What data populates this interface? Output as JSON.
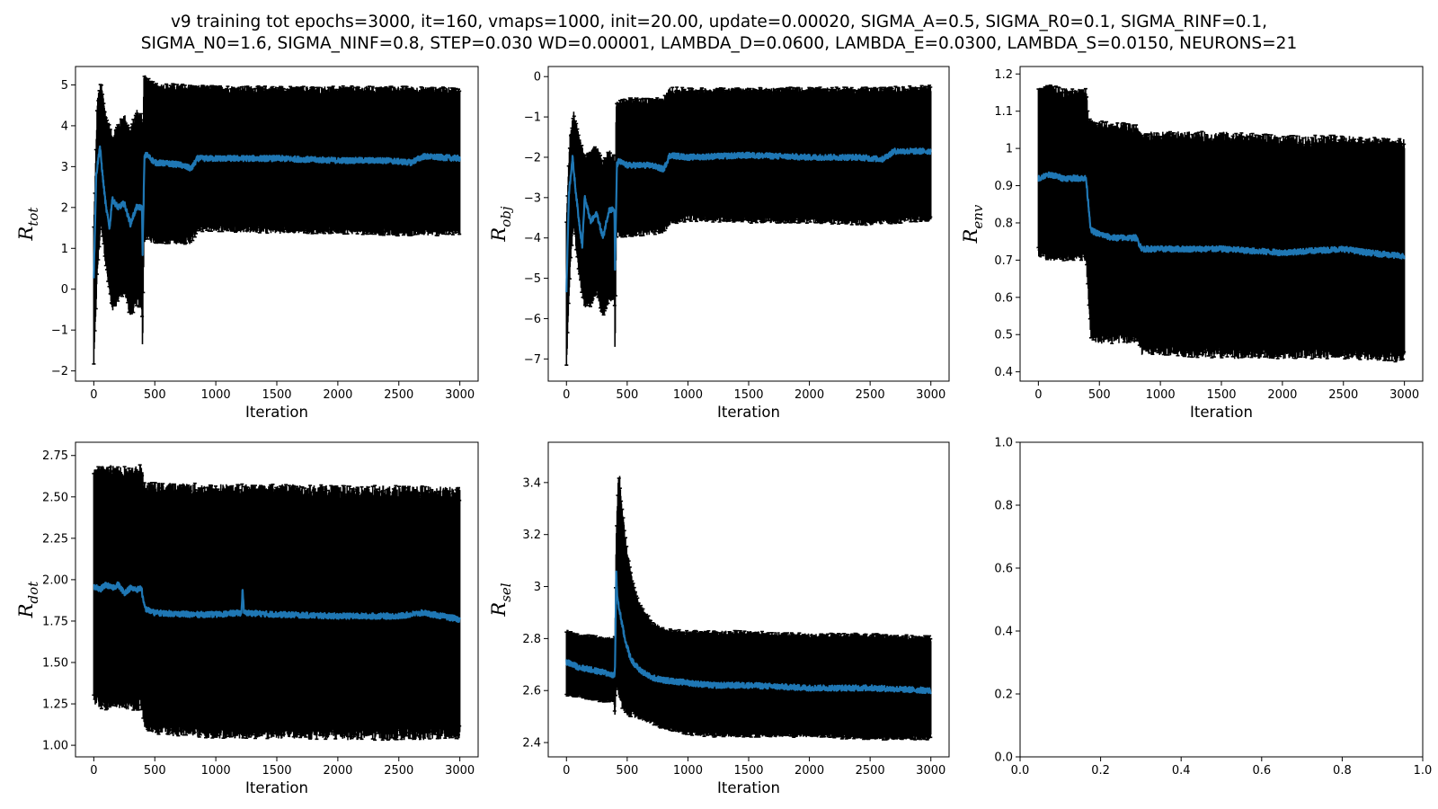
{
  "figure": {
    "title_line1": "v9 training tot epochs=3000, it=160, vmaps=1000, init=20.00, update=0.00020, SIGMA_A=0.5, SIGMA_R0=0.1, SIGMA_RINF=0.1,",
    "title_line2": "SIGMA_N0=1.6, SIGMA_NINF=0.8, STEP=0.030 WD=0.00001, LAMBDA_D=0.0600, LAMBDA_E=0.0300, LAMBDA_S=0.0150, NEURONS=21"
  },
  "chart_data": [
    {
      "type": "line",
      "ylabel_main": "R",
      "ylabel_sub": "tot",
      "xlabel": "Iteration",
      "xlim": [
        -150,
        3150
      ],
      "ylim": [
        -2.25,
        5.45
      ],
      "xticks": [
        0,
        500,
        1000,
        1500,
        2000,
        2500,
        3000
      ],
      "yticks": [
        -2,
        -1,
        0,
        1,
        2,
        3,
        4,
        5
      ],
      "line_color": "#1f77b4",
      "errorbar_color": "#000000",
      "mean_series": {
        "x": [
          0,
          20,
          50,
          75,
          100,
          130,
          150,
          200,
          250,
          300,
          350,
          395,
          400,
          415,
          430,
          500,
          700,
          800,
          850,
          1000,
          1500,
          2000,
          2400,
          2600,
          2700,
          3000
        ],
        "y": [
          0.3,
          2.8,
          3.5,
          2.7,
          2.0,
          1.5,
          2.2,
          2.0,
          2.1,
          1.6,
          2.0,
          2.0,
          0.9,
          3.2,
          3.3,
          3.1,
          3.05,
          2.95,
          3.2,
          3.2,
          3.2,
          3.15,
          3.15,
          3.1,
          3.25,
          3.2
        ]
      },
      "upper_band": {
        "x": [
          0,
          30,
          60,
          100,
          150,
          200,
          250,
          300,
          350,
          395,
          400,
          410,
          430,
          500,
          1000,
          1500,
          2000,
          2500,
          3000
        ],
        "y": [
          1.5,
          4.6,
          5.0,
          4.2,
          3.7,
          4.0,
          4.2,
          3.8,
          4.3,
          4.2,
          3.0,
          5.25,
          5.1,
          4.95,
          4.9,
          4.88,
          4.88,
          4.88,
          4.85
        ]
      },
      "lower_band": {
        "x": [
          0,
          30,
          60,
          100,
          150,
          200,
          250,
          300,
          350,
          395,
          400,
          410,
          430,
          500,
          800,
          850,
          1000,
          1500,
          2000,
          2500,
          3000
        ],
        "y": [
          -1.8,
          0.5,
          1.7,
          0.6,
          -0.5,
          -0.2,
          0.0,
          -0.6,
          -0.3,
          -0.4,
          -1.6,
          1.2,
          1.3,
          1.2,
          1.2,
          1.5,
          1.5,
          1.45,
          1.45,
          1.4,
          1.4
        ]
      }
    },
    {
      "type": "line",
      "ylabel_main": "R",
      "ylabel_sub": "obj",
      "xlabel": "Iteration",
      "xlim": [
        -150,
        3150
      ],
      "ylim": [
        -7.55,
        0.25
      ],
      "xticks": [
        0,
        500,
        1000,
        1500,
        2000,
        2500,
        3000
      ],
      "yticks": [
        -7,
        -6,
        -5,
        -4,
        -3,
        -2,
        -1,
        0
      ],
      "line_color": "#1f77b4",
      "errorbar_color": "#000000",
      "mean_series": {
        "x": [
          0,
          20,
          50,
          75,
          100,
          130,
          150,
          200,
          250,
          300,
          350,
          395,
          400,
          415,
          430,
          500,
          700,
          800,
          850,
          1000,
          1500,
          2000,
          2400,
          2600,
          2700,
          3000
        ],
        "y": [
          -5.3,
          -2.9,
          -2.0,
          -2.8,
          -3.5,
          -4.2,
          -3.0,
          -3.6,
          -3.4,
          -4.0,
          -3.3,
          -3.3,
          -4.8,
          -2.2,
          -2.1,
          -2.2,
          -2.2,
          -2.3,
          -1.95,
          -2.0,
          -1.95,
          -2.0,
          -2.0,
          -2.05,
          -1.85,
          -1.85
        ]
      },
      "upper_band": {
        "x": [
          0,
          30,
          60,
          100,
          150,
          200,
          250,
          300,
          350,
          395,
          400,
          410,
          430,
          500,
          800,
          850,
          1000,
          1500,
          2000,
          2500,
          3000
        ],
        "y": [
          -3.5,
          -1.5,
          -0.9,
          -1.5,
          -2.0,
          -1.9,
          -1.8,
          -2.2,
          -1.9,
          -2.0,
          -3.2,
          -0.7,
          -0.65,
          -0.6,
          -0.6,
          -0.35,
          -0.35,
          -0.35,
          -0.35,
          -0.35,
          -0.3
        ]
      },
      "lower_band": {
        "x": [
          0,
          30,
          60,
          100,
          150,
          200,
          250,
          300,
          350,
          395,
          400,
          410,
          430,
          500,
          800,
          850,
          1000,
          1500,
          2000,
          2500,
          3000
        ],
        "y": [
          -7.2,
          -4.7,
          -3.6,
          -4.8,
          -5.7,
          -5.6,
          -5.3,
          -5.9,
          -5.5,
          -5.5,
          -6.9,
          -3.9,
          -3.9,
          -3.9,
          -3.8,
          -3.6,
          -3.5,
          -3.55,
          -3.55,
          -3.6,
          -3.5
        ]
      }
    },
    {
      "type": "line",
      "ylabel_main": "R",
      "ylabel_sub": "env",
      "xlabel": "Iteration",
      "xlim": [
        -150,
        3150
      ],
      "ylim": [
        0.375,
        1.22
      ],
      "xticks": [
        0,
        500,
        1000,
        1500,
        2000,
        2500,
        3000
      ],
      "yticks": [
        0.4,
        0.5,
        0.6,
        0.7,
        0.8,
        0.9,
        1.0,
        1.1,
        1.2
      ],
      "line_color": "#1f77b4",
      "errorbar_color": "#000000",
      "mean_series": {
        "x": [
          0,
          100,
          200,
          300,
          390,
          410,
          430,
          500,
          600,
          800,
          850,
          1000,
          1500,
          2000,
          2500,
          2700,
          3000
        ],
        "y": [
          0.92,
          0.93,
          0.92,
          0.92,
          0.92,
          0.85,
          0.78,
          0.77,
          0.76,
          0.76,
          0.73,
          0.73,
          0.73,
          0.72,
          0.73,
          0.72,
          0.71
        ]
      },
      "upper_band": {
        "x": [
          0,
          100,
          200,
          300,
          390,
          410,
          430,
          500,
          800,
          850,
          1000,
          1500,
          2000,
          2500,
          3000
        ],
        "y": [
          1.15,
          1.16,
          1.15,
          1.15,
          1.15,
          1.08,
          1.06,
          1.06,
          1.05,
          1.03,
          1.03,
          1.03,
          1.02,
          1.02,
          1.01
        ]
      },
      "lower_band": {
        "x": [
          0,
          100,
          200,
          300,
          390,
          410,
          430,
          500,
          800,
          850,
          1000,
          1500,
          2000,
          2500,
          3000
        ],
        "y": [
          0.72,
          0.71,
          0.71,
          0.71,
          0.71,
          0.6,
          0.5,
          0.49,
          0.49,
          0.46,
          0.46,
          0.45,
          0.45,
          0.45,
          0.44
        ]
      }
    },
    {
      "type": "line",
      "ylabel_main": "R",
      "ylabel_sub": "dot",
      "xlabel": "Iteration",
      "xlim": [
        -150,
        3150
      ],
      "ylim": [
        0.93,
        2.83
      ],
      "xticks": [
        0,
        500,
        1000,
        1500,
        2000,
        2500,
        3000
      ],
      "yticks": [
        1.0,
        1.25,
        1.5,
        1.75,
        2.0,
        2.25,
        2.5,
        2.75
      ],
      "ytick_labels": [
        "1.00",
        "1.25",
        "1.50",
        "1.75",
        "2.00",
        "2.25",
        "2.50",
        "2.75"
      ],
      "line_color": "#1f77b4",
      "errorbar_color": "#000000",
      "mean_series": {
        "x": [
          0,
          50,
          100,
          150,
          200,
          250,
          300,
          350,
          390,
          410,
          430,
          500,
          800,
          1000,
          1210,
          1220,
          1230,
          1500,
          2000,
          2500,
          2700,
          3000
        ],
        "y": [
          1.96,
          1.94,
          1.97,
          1.95,
          1.97,
          1.92,
          1.95,
          1.94,
          1.95,
          1.85,
          1.82,
          1.8,
          1.79,
          1.79,
          1.8,
          1.95,
          1.8,
          1.79,
          1.78,
          1.78,
          1.8,
          1.76
        ]
      },
      "upper_band": {
        "x": [
          0,
          100,
          200,
          300,
          390,
          410,
          430,
          500,
          1000,
          1500,
          2000,
          2500,
          3000
        ],
        "y": [
          2.64,
          2.66,
          2.66,
          2.64,
          2.66,
          2.58,
          2.55,
          2.55,
          2.54,
          2.54,
          2.53,
          2.53,
          2.52
        ]
      },
      "lower_band": {
        "x": [
          0,
          100,
          200,
          300,
          390,
          410,
          430,
          500,
          1000,
          1500,
          2000,
          2500,
          3000
        ],
        "y": [
          1.27,
          1.25,
          1.26,
          1.25,
          1.25,
          1.15,
          1.12,
          1.1,
          1.08,
          1.08,
          1.07,
          1.07,
          1.07
        ]
      }
    },
    {
      "type": "line",
      "ylabel_main": "R",
      "ylabel_sub": "sel",
      "xlabel": "Iteration",
      "xlim": [
        -150,
        3150
      ],
      "ylim": [
        2.345,
        3.555
      ],
      "xticks": [
        0,
        500,
        1000,
        1500,
        2000,
        2500,
        3000
      ],
      "yticks": [
        2.4,
        2.6,
        2.8,
        3.0,
        3.2,
        3.4
      ],
      "line_color": "#1f77b4",
      "errorbar_color": "#000000",
      "mean_series": {
        "x": [
          0,
          100,
          200,
          300,
          390,
          395,
          400,
          410,
          420,
          440,
          480,
          530,
          600,
          700,
          800,
          1000,
          1200,
          1500,
          2000,
          2500,
          3000
        ],
        "y": [
          2.71,
          2.69,
          2.68,
          2.67,
          2.66,
          2.65,
          2.7,
          3.05,
          2.95,
          2.9,
          2.8,
          2.72,
          2.68,
          2.65,
          2.64,
          2.63,
          2.62,
          2.62,
          2.61,
          2.61,
          2.6
        ]
      },
      "upper_band": {
        "x": [
          0,
          100,
          200,
          300,
          390,
          400,
          410,
          430,
          460,
          500,
          550,
          600,
          700,
          800,
          1000,
          1500,
          2000,
          2500,
          3000
        ],
        "y": [
          2.83,
          2.81,
          2.81,
          2.8,
          2.8,
          2.8,
          3.2,
          3.45,
          3.3,
          3.12,
          3.0,
          2.93,
          2.86,
          2.83,
          2.82,
          2.82,
          2.81,
          2.81,
          2.8
        ]
      },
      "lower_band": {
        "x": [
          0,
          100,
          200,
          300,
          390,
          400,
          410,
          430,
          460,
          500,
          600,
          800,
          1000,
          1200,
          1500,
          2000,
          2500,
          3000
        ],
        "y": [
          2.58,
          2.58,
          2.57,
          2.56,
          2.56,
          2.5,
          2.64,
          2.6,
          2.55,
          2.52,
          2.5,
          2.46,
          2.44,
          2.43,
          2.43,
          2.43,
          2.42,
          2.42
        ]
      }
    },
    {
      "type": "line",
      "empty": true,
      "xlim": [
        0,
        1
      ],
      "ylim": [
        0,
        1
      ],
      "xticks": [
        0,
        0.2,
        0.4,
        0.6,
        0.8,
        1.0
      ],
      "yticks": [
        0,
        0.2,
        0.4,
        0.6,
        0.8,
        1.0
      ],
      "xtick_labels": [
        "0.0",
        "0.2",
        "0.4",
        "0.6",
        "0.8",
        "1.0"
      ],
      "ytick_labels": [
        "0.0",
        "0.2",
        "0.4",
        "0.6",
        "0.8",
        "1.0"
      ]
    }
  ]
}
